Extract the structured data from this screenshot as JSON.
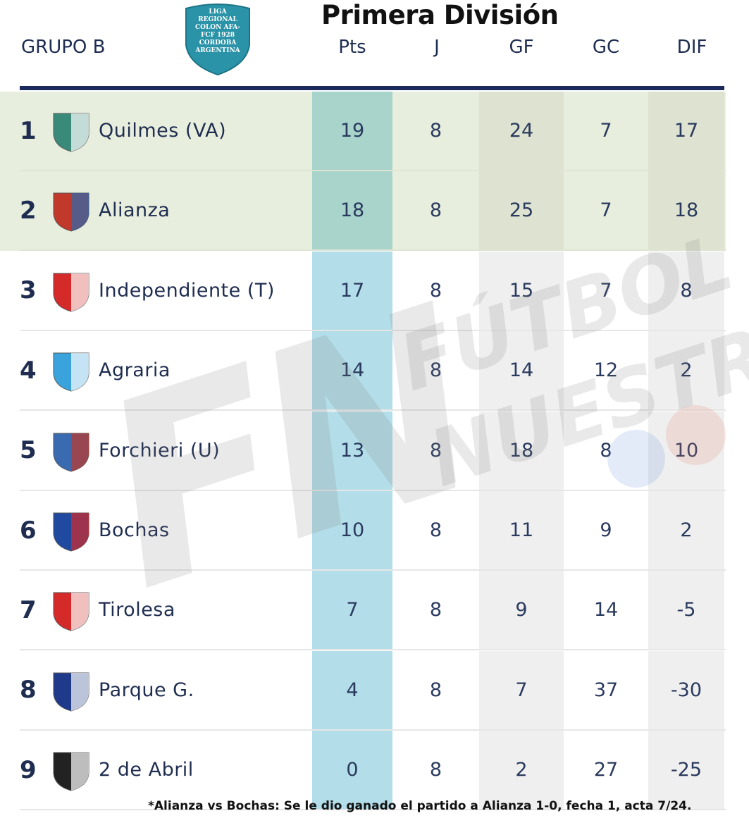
{
  "header": {
    "title": "Primera División",
    "group": "GRUPO B",
    "league_logo_text": "LIGA REGIONAL COLON AFA-FCF 1928 CORDOBA ARGENTINA",
    "columns": [
      "Pts",
      "J",
      "GF",
      "GC",
      "DIF"
    ]
  },
  "rows": [
    {
      "pos": "1",
      "team": "Quilmes (VA)",
      "pts": "19",
      "j": "8",
      "gf": "24",
      "gc": "7",
      "dif": "17",
      "crest": "C.A.Q."
    },
    {
      "pos": "2",
      "team": "Alianza",
      "pts": "18",
      "j": "8",
      "gf": "25",
      "gc": "7",
      "dif": "18",
      "crest": "Alianza"
    },
    {
      "pos": "3",
      "team": "Independiente (T)",
      "pts": "17",
      "j": "8",
      "gf": "15",
      "gc": "7",
      "dif": "8",
      "crest": "C.A.I."
    },
    {
      "pos": "4",
      "team": "Agraria",
      "pts": "14",
      "j": "8",
      "gf": "14",
      "gc": "12",
      "dif": "2",
      "crest": "CJAC"
    },
    {
      "pos": "5",
      "team": "Forchieri (U)",
      "pts": "13",
      "j": "8",
      "gf": "18",
      "gc": "8",
      "dif": "10",
      "crest": "C.S.F."
    },
    {
      "pos": "6",
      "team": "Bochas",
      "pts": "10",
      "j": "8",
      "gf": "11",
      "gc": "9",
      "dif": "2",
      "crest": "BSC"
    },
    {
      "pos": "7",
      "team": "Tirolesa",
      "pts": "7",
      "j": "8",
      "gf": "9",
      "gc": "14",
      "dif": "-5",
      "crest": "CSCT"
    },
    {
      "pos": "8",
      "team": "Parque G.",
      "pts": "4",
      "j": "8",
      "gf": "7",
      "gc": "37",
      "dif": "-30",
      "crest": "PG"
    },
    {
      "pos": "9",
      "team": "2 de Abril",
      "pts": "0",
      "j": "8",
      "gf": "2",
      "gc": "27",
      "dif": "-25",
      "crest": "2A"
    }
  ],
  "footnote": "*Alianza vs Bochas: Se le dio ganado el partido a Alianza 1-0, fecha 1, acta 7/24.",
  "watermark": {
    "big": "FN",
    "line1": "FÚTBOL",
    "line2": "NUESTRO"
  },
  "colors": {
    "navy": "#1a2a5c",
    "pts_column": "#b3dde8",
    "qualify_rows": "#e8eedd"
  }
}
